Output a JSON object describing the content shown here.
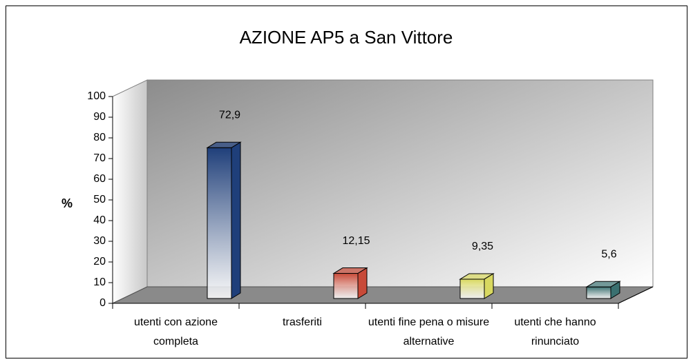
{
  "chart_data": {
    "type": "bar3d",
    "title": "AZIONE AP5 a San Vittore",
    "y_label": "%",
    "categories": [
      "utenti con azione completa",
      "trasferiti",
      "utenti fine pena o misure alternative",
      "utenti che hanno rinunciato"
    ],
    "values": [
      72.9,
      12.15,
      9.35,
      5.6
    ],
    "value_labels": [
      "72,9",
      "12,15",
      "9,35",
      "5,6"
    ],
    "colors": [
      "#1f3f7a",
      "#c84a38",
      "#d8d860",
      "#3a7070"
    ],
    "ylim": [
      0,
      100
    ],
    "yticks": [
      0,
      10,
      20,
      30,
      40,
      50,
      60,
      70,
      80,
      90,
      100
    ]
  }
}
